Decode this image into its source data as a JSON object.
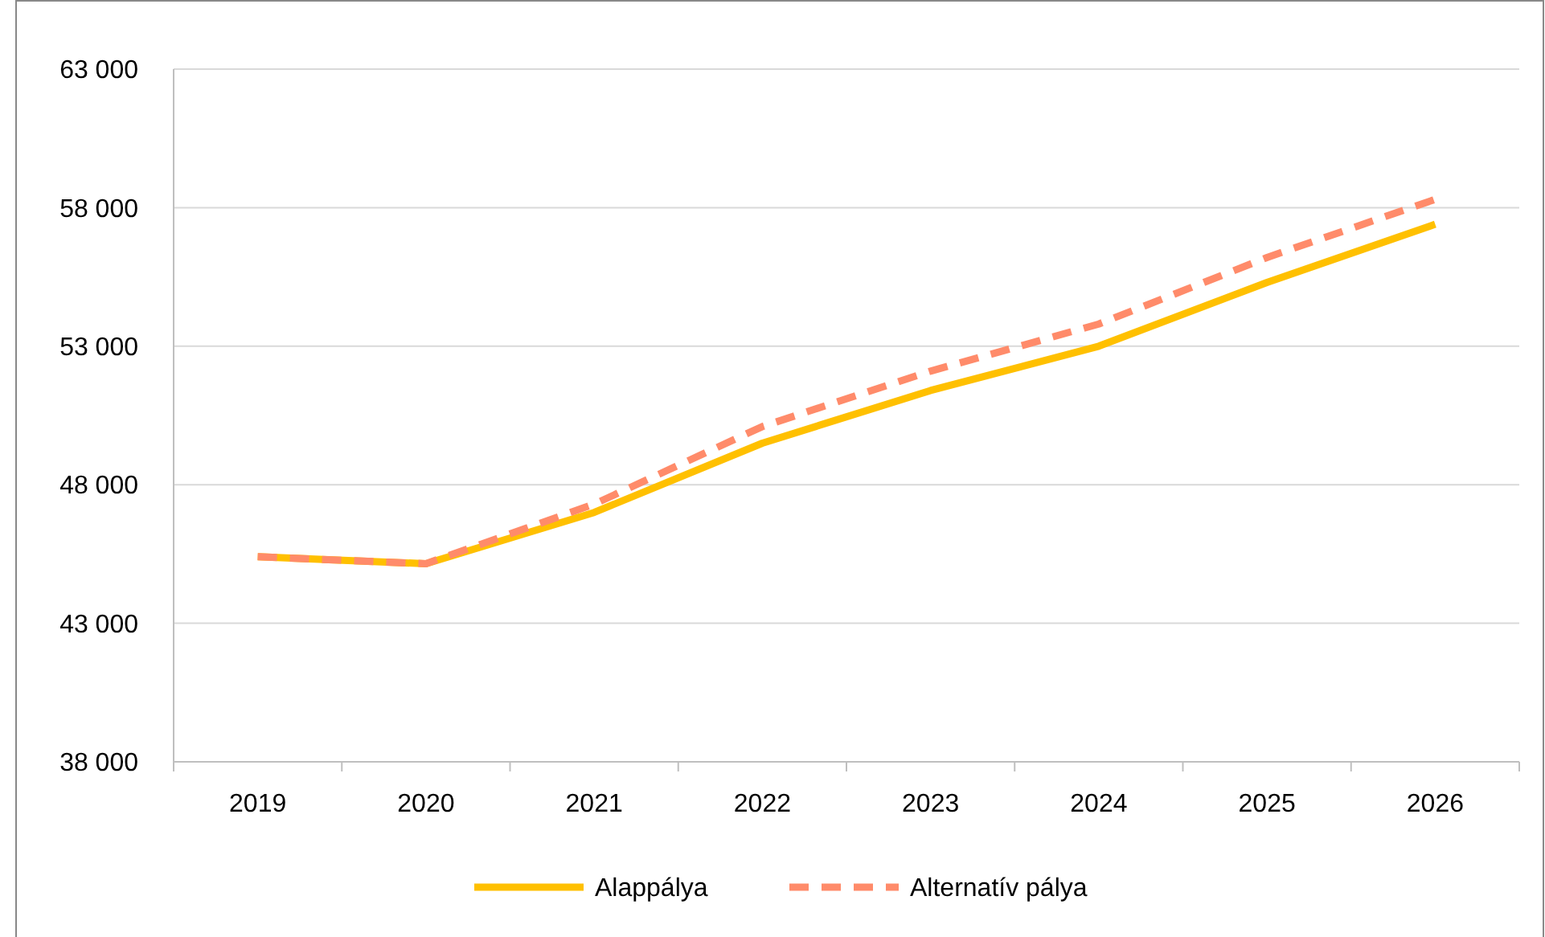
{
  "chart_data": {
    "type": "line",
    "categories": [
      "2019",
      "2020",
      "2021",
      "2022",
      "2023",
      "2024",
      "2025",
      "2026"
    ],
    "series": [
      {
        "name": "Alappálya",
        "color": "#ffc000",
        "line_style": "solid",
        "values": [
          45400,
          45150,
          47000,
          49500,
          51400,
          53000,
          55300,
          57400
        ]
      },
      {
        "name": "Alternatív pálya",
        "color": "#ff8b6a",
        "line_style": "dashed",
        "values": [
          45400,
          45150,
          47300,
          50100,
          52100,
          53800,
          56200,
          58300
        ]
      }
    ],
    "ylim": [
      38000,
      63000
    ],
    "yticks": [
      {
        "value": 38000,
        "label": "38 000"
      },
      {
        "value": 43000,
        "label": "43 000"
      },
      {
        "value": 48000,
        "label": "48 000"
      },
      {
        "value": 53000,
        "label": "53 000"
      },
      {
        "value": 58000,
        "label": "58 000"
      },
      {
        "value": 63000,
        "label": "63 000"
      }
    ],
    "grid": "y",
    "legend": "bottom",
    "marker": "none"
  }
}
